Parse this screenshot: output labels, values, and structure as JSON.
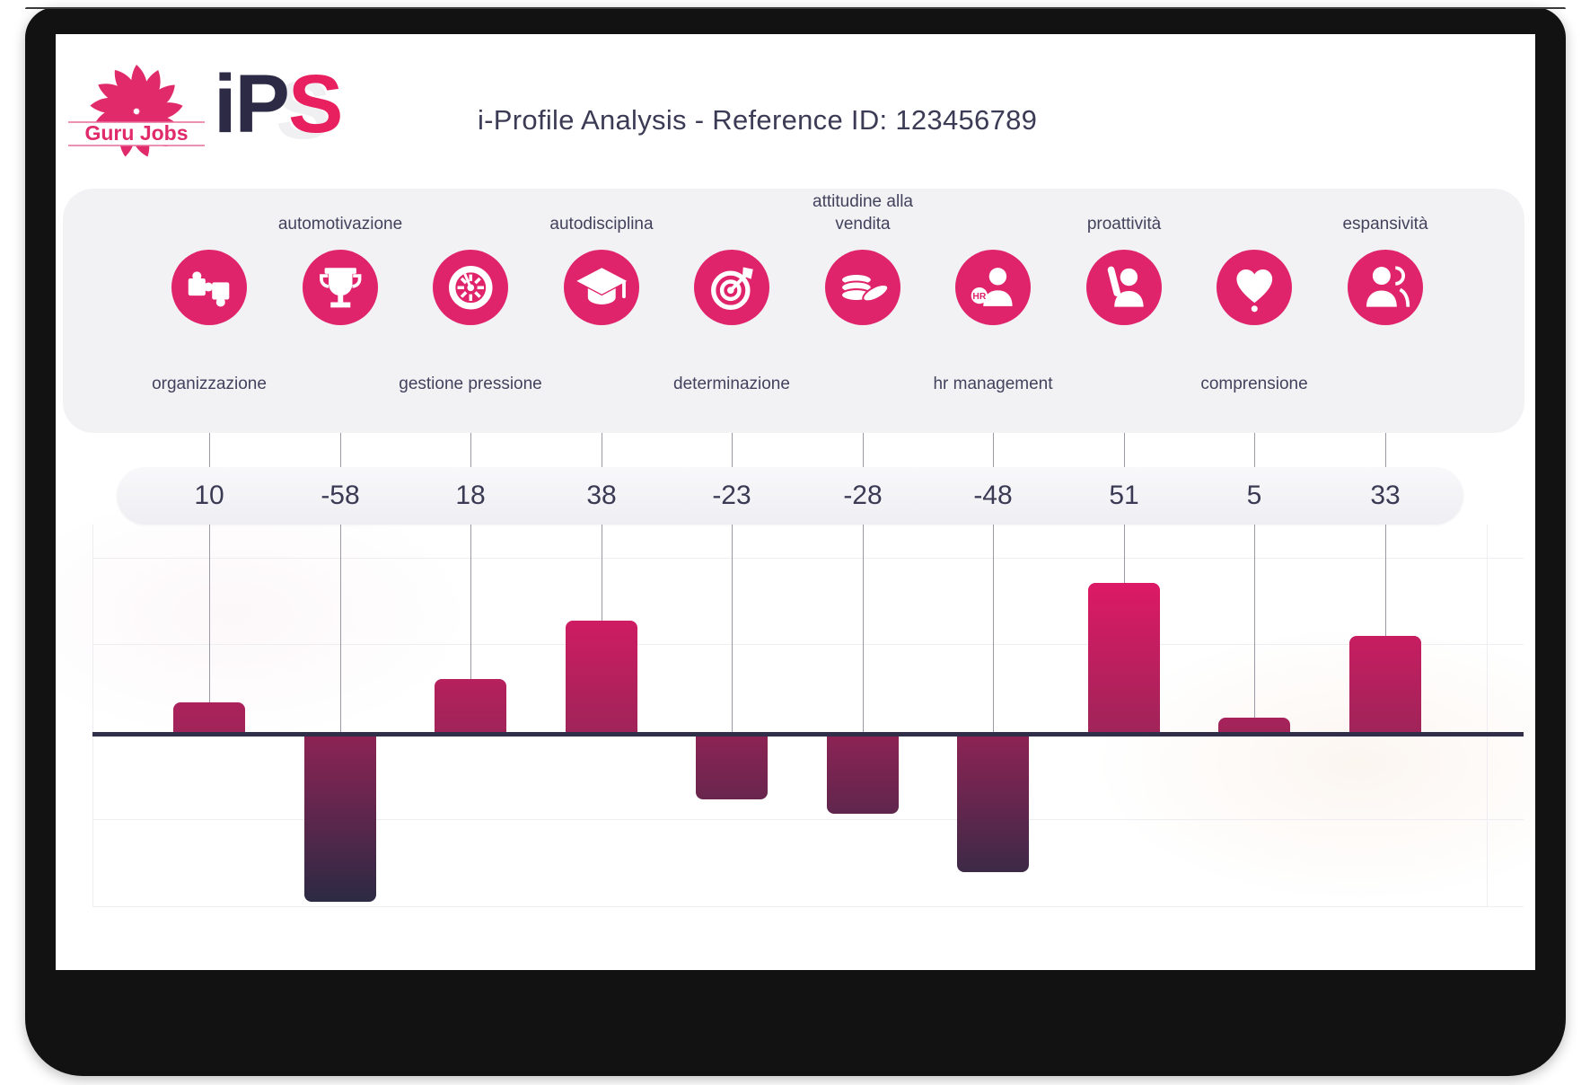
{
  "header": {
    "logo_text": "Guru Jobs",
    "brand_prefix": "iP",
    "brand_suffix": "S",
    "title": "i-Profile Analysis - Reference ID: 123456789"
  },
  "chart_data": {
    "type": "bar",
    "categories": [
      "organizzazione",
      "automotivazione",
      "gestione pressione",
      "autodisciplina",
      "determinazione",
      "attitudine alla vendita",
      "hr management",
      "proattività",
      "comprensione",
      "espansività"
    ],
    "values": [
      10,
      -58,
      18,
      38,
      -23,
      -28,
      -48,
      51,
      5,
      33
    ],
    "label_side": [
      "bottom",
      "top",
      "bottom",
      "top",
      "bottom",
      "top",
      "bottom",
      "top",
      "bottom",
      "top"
    ],
    "icons": [
      "puzzle-icon",
      "trophy-icon",
      "gauge-icon",
      "graduation-cap-icon",
      "target-icon",
      "coins-icon",
      "hr-person-icon",
      "raised-hand-icon",
      "heart-icon",
      "people-icon"
    ],
    "ylim": [
      -60,
      60
    ],
    "baseline_value": 0,
    "grid": true,
    "legend": "none",
    "colors": {
      "positive_top": "#dd1965",
      "near_baseline_positive": "#a02459",
      "near_baseline_negative": "#8f2355",
      "negative_bottom": "#2b2a44",
      "baseline": "#312e49",
      "icon_circle": "#e0246b",
      "connector": "#9b99a6",
      "panel_bg": "#f2f2f5",
      "text_dark": "#3b3a54"
    }
  }
}
